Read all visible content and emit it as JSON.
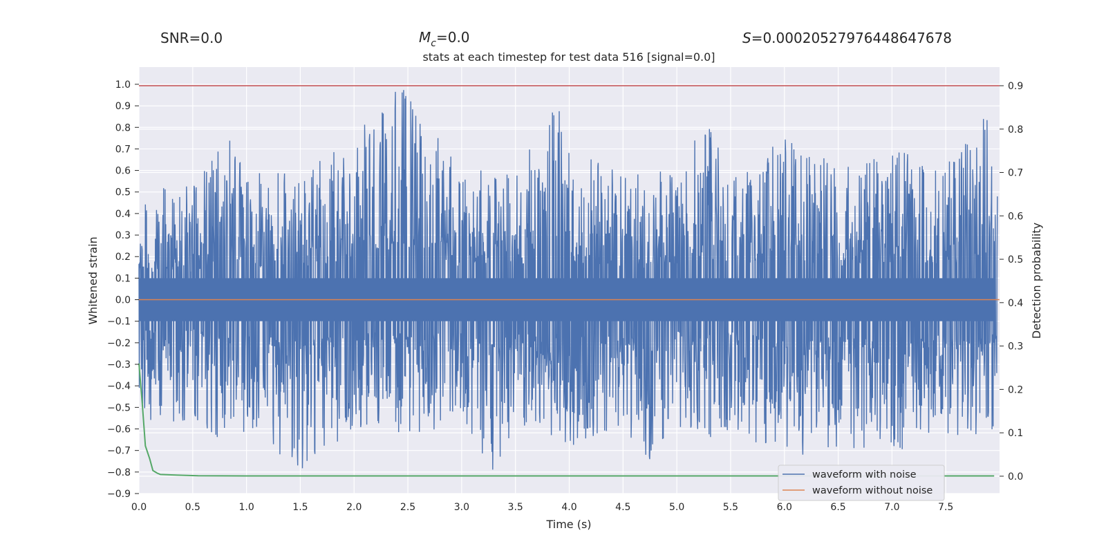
{
  "header": {
    "snr_text": "SNR=0.0",
    "mc_symbol": "M",
    "mc_sub": "c",
    "mc_value": "=0.0",
    "s_symbol": "S",
    "s_value": "=0.00020527976448647678"
  },
  "chart_data": {
    "type": "line",
    "title": "stats at each timestep for test data 516 [signal=0.0]",
    "xlabel": "Time (s)",
    "ylabel": "Whitened strain",
    "y2label": "Detection probability",
    "xlim": [
      0.0,
      8.0
    ],
    "ylim": [
      -0.9,
      1.08
    ],
    "y2lim": [
      -0.04,
      0.943
    ],
    "xticks": [
      "0.0",
      "0.5",
      "1.0",
      "1.5",
      "2.0",
      "2.5",
      "3.0",
      "3.5",
      "4.0",
      "4.5",
      "5.0",
      "5.5",
      "6.0",
      "6.5",
      "7.0",
      "7.5"
    ],
    "yticks": [
      "1.0",
      "0.9",
      "0.8",
      "0.7",
      "0.6",
      "0.5",
      "0.4",
      "0.3",
      "0.2",
      "0.1",
      "0.0",
      "−0.1",
      "−0.2",
      "−0.3",
      "−0.4",
      "−0.5",
      "−0.6",
      "−0.7",
      "−0.8",
      "−0.9"
    ],
    "y2ticks": [
      "0.9",
      "0.8",
      "0.7",
      "0.6",
      "0.5",
      "0.4",
      "0.3",
      "0.2",
      "0.1",
      "0.0"
    ],
    "threshold": {
      "axis": "y2",
      "value": 0.9,
      "color": "#c44e52"
    },
    "series": [
      {
        "name": "waveform with noise",
        "axis": "y",
        "color": "#4c72b0",
        "note": "dense noisy whitened strain, roughly spanning -0.8 to 1.0",
        "envelope": {
          "t": [
            0.0,
            0.25,
            0.5,
            0.85,
            1.0,
            1.5,
            2.0,
            2.45,
            3.0,
            3.28,
            3.5,
            3.88,
            4.0,
            4.5,
            4.87,
            5.0,
            5.25,
            5.5,
            6.0,
            6.5,
            7.0,
            7.5,
            7.9
          ],
          "max": [
            0.48,
            0.55,
            0.52,
            0.77,
            0.6,
            0.58,
            0.76,
            1.0,
            0.6,
            0.6,
            0.57,
            0.94,
            0.7,
            0.58,
            0.6,
            0.58,
            0.85,
            0.58,
            0.76,
            0.62,
            0.7,
            0.62,
            0.87
          ],
          "min": [
            -0.51,
            -0.62,
            -0.54,
            -0.69,
            -0.6,
            -0.79,
            -0.6,
            -0.62,
            -0.62,
            -0.81,
            -0.62,
            -0.63,
            -0.69,
            -0.6,
            -0.81,
            -0.58,
            -0.66,
            -0.6,
            -0.74,
            -0.68,
            -0.71,
            -0.66,
            -0.64
          ]
        }
      },
      {
        "name": "waveform without noise",
        "axis": "y",
        "color": "#dd8452",
        "x": [
          0.0,
          8.0
        ],
        "y": [
          0.0,
          0.0
        ]
      },
      {
        "name": "detection probability",
        "axis": "y2",
        "color": "#55a868",
        "x": [
          0.0,
          0.03,
          0.06,
          0.1,
          0.13,
          0.17,
          0.2,
          0.3,
          0.55,
          1.0,
          7.95
        ],
        "y": [
          0.26,
          0.17,
          0.07,
          0.04,
          0.013,
          0.007,
          0.004,
          0.003,
          0.001,
          0.0007,
          0.0007
        ]
      }
    ],
    "legend": {
      "position": "lower-right",
      "entries": [
        {
          "label": "waveform with noise",
          "color": "#4c72b0"
        },
        {
          "label": "waveform without noise",
          "color": "#dd8452"
        }
      ]
    },
    "background": "#eaeaf2",
    "grid": true
  }
}
